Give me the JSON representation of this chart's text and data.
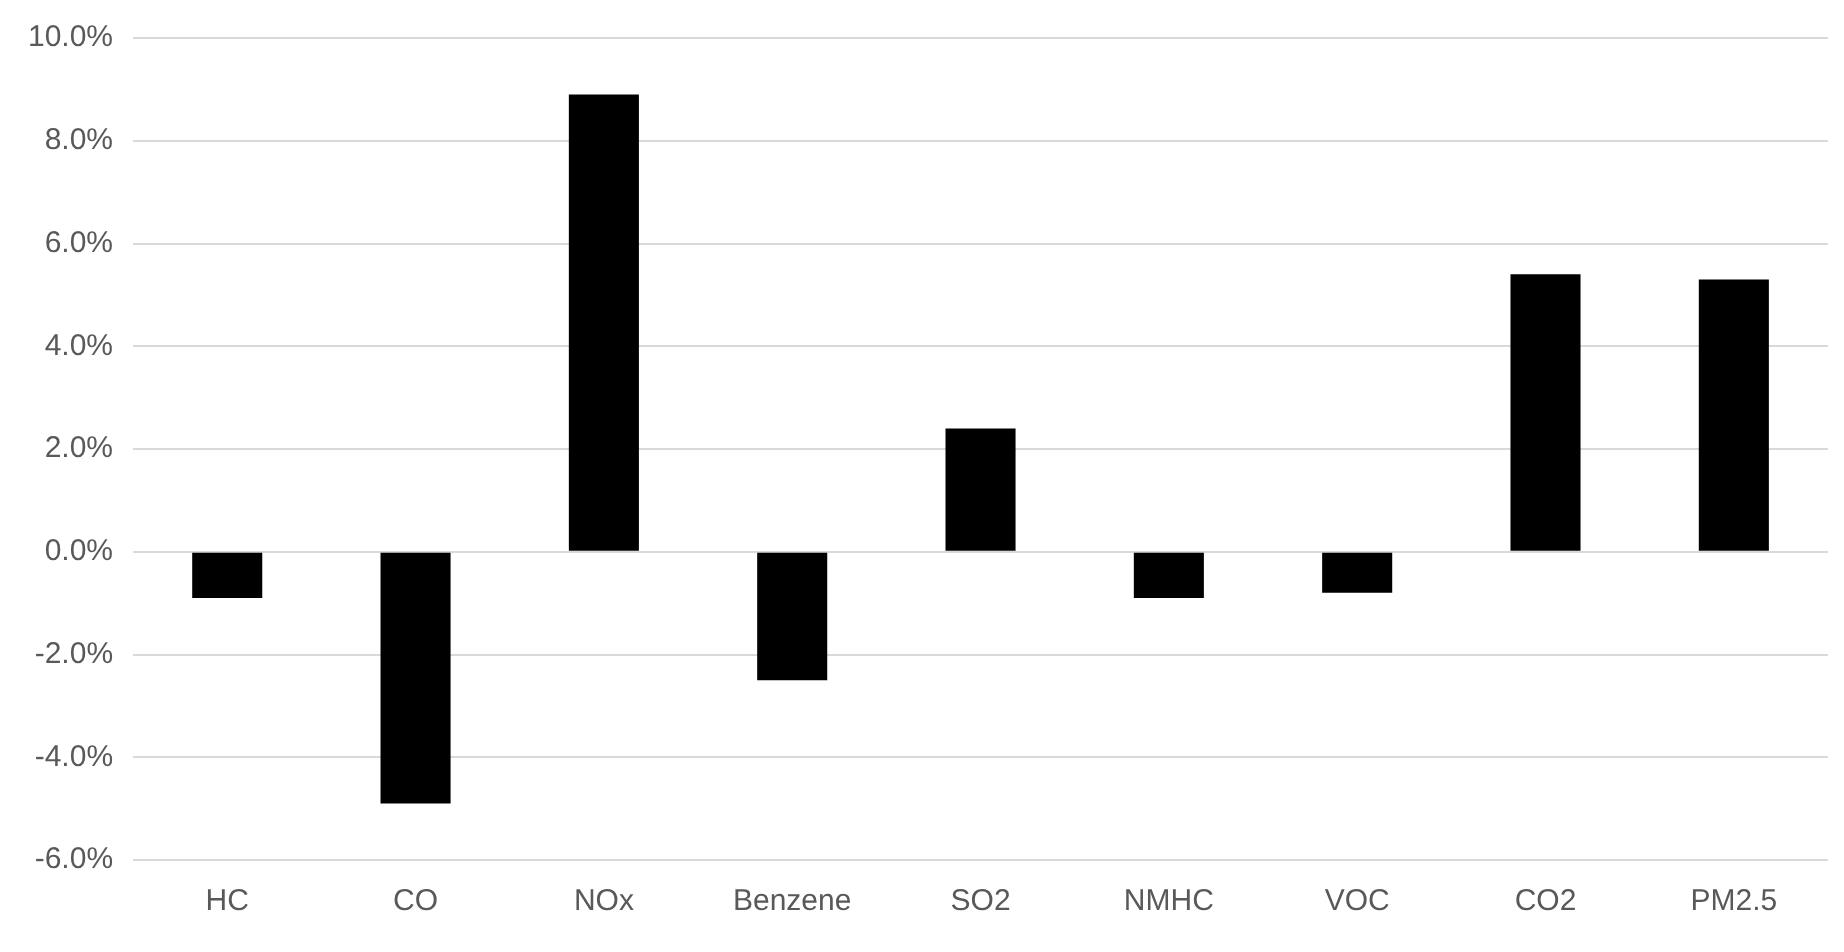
{
  "chart_data": {
    "type": "bar",
    "categories": [
      "HC",
      "CO",
      "NOx",
      "Benzene",
      "SO2",
      "NMHC",
      "VOC",
      "CO2",
      "PM2.5"
    ],
    "values": [
      -0.9,
      -4.9,
      8.9,
      -2.5,
      2.4,
      -0.9,
      -0.8,
      5.4,
      5.3
    ],
    "color": "#000000",
    "ylim": [
      -6,
      10
    ],
    "yticks": [
      {
        "value": -6,
        "label": "-6.0%"
      },
      {
        "value": -4,
        "label": "-4.0%"
      },
      {
        "value": -2,
        "label": "-2.0%"
      },
      {
        "value": 0,
        "label": "0.0%"
      },
      {
        "value": 2,
        "label": "2.0%"
      },
      {
        "value": 4,
        "label": "4.0%"
      },
      {
        "value": 6,
        "label": "6.0%"
      },
      {
        "value": 8,
        "label": "8.0%"
      },
      {
        "value": 10,
        "label": "10.0%"
      }
    ],
    "grid": "y"
  }
}
